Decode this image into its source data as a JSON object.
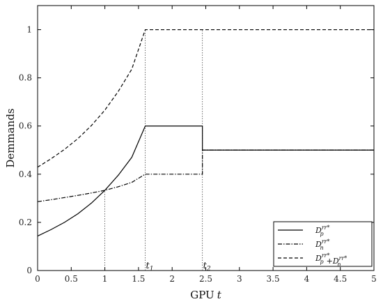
{
  "chart_data": {
    "type": "line",
    "xlabel": "GPU",
    "xlabel_var": "t",
    "ylabel": "Demmands",
    "xlim": [
      0,
      5
    ],
    "ylim": [
      0,
      1.1
    ],
    "xticks": [
      "0",
      "0.5",
      "1",
      "1.5",
      "2",
      "2.5",
      "3",
      "3.5",
      "4",
      "4.5",
      "5"
    ],
    "yticks": [
      "0",
      "0.2",
      "0.4",
      "0.6",
      "0.8",
      "1"
    ],
    "grid": false,
    "legend_position": "bottom-right",
    "series": [
      {
        "name": "D",
        "sub": "p",
        "sup": "rr*",
        "style": "solid",
        "x": [
          0,
          0.2,
          0.4,
          0.6,
          0.8,
          1.0,
          1.2,
          1.4,
          1.6,
          2.45,
          2.45,
          5
        ],
        "y": [
          0.143,
          0.17,
          0.2,
          0.236,
          0.28,
          0.333,
          0.396,
          0.47,
          0.6,
          0.6,
          0.5,
          0.5
        ]
      },
      {
        "name": "D",
        "sub": "n",
        "sup": "rr*",
        "style": "dashdot",
        "x": [
          0,
          0.2,
          0.4,
          0.6,
          0.8,
          1.0,
          1.2,
          1.4,
          1.6,
          2.45,
          2.45,
          5
        ],
        "y": [
          0.286,
          0.294,
          0.303,
          0.312,
          0.322,
          0.333,
          0.348,
          0.366,
          0.4,
          0.4,
          0.5,
          0.5
        ]
      },
      {
        "name": "D",
        "sub": "p",
        "sup": "rr*",
        "name2": "D",
        "sub2": "n",
        "sup2": "rr*",
        "style": "dashed",
        "x": [
          0,
          0.2,
          0.4,
          0.6,
          0.8,
          1.0,
          1.2,
          1.4,
          1.6,
          5
        ],
        "y": [
          0.429,
          0.464,
          0.503,
          0.548,
          0.602,
          0.666,
          0.744,
          0.836,
          1.0,
          1.0
        ]
      }
    ],
    "reference_lines": [
      {
        "x": 1.0,
        "y_to": 0.333,
        "label": ""
      },
      {
        "x": 1.6,
        "y_to": 1.0,
        "label": "t",
        "label_sub": "1"
      },
      {
        "x": 2.45,
        "y_to": 1.0,
        "label": "t",
        "label_sub": "2"
      }
    ]
  }
}
